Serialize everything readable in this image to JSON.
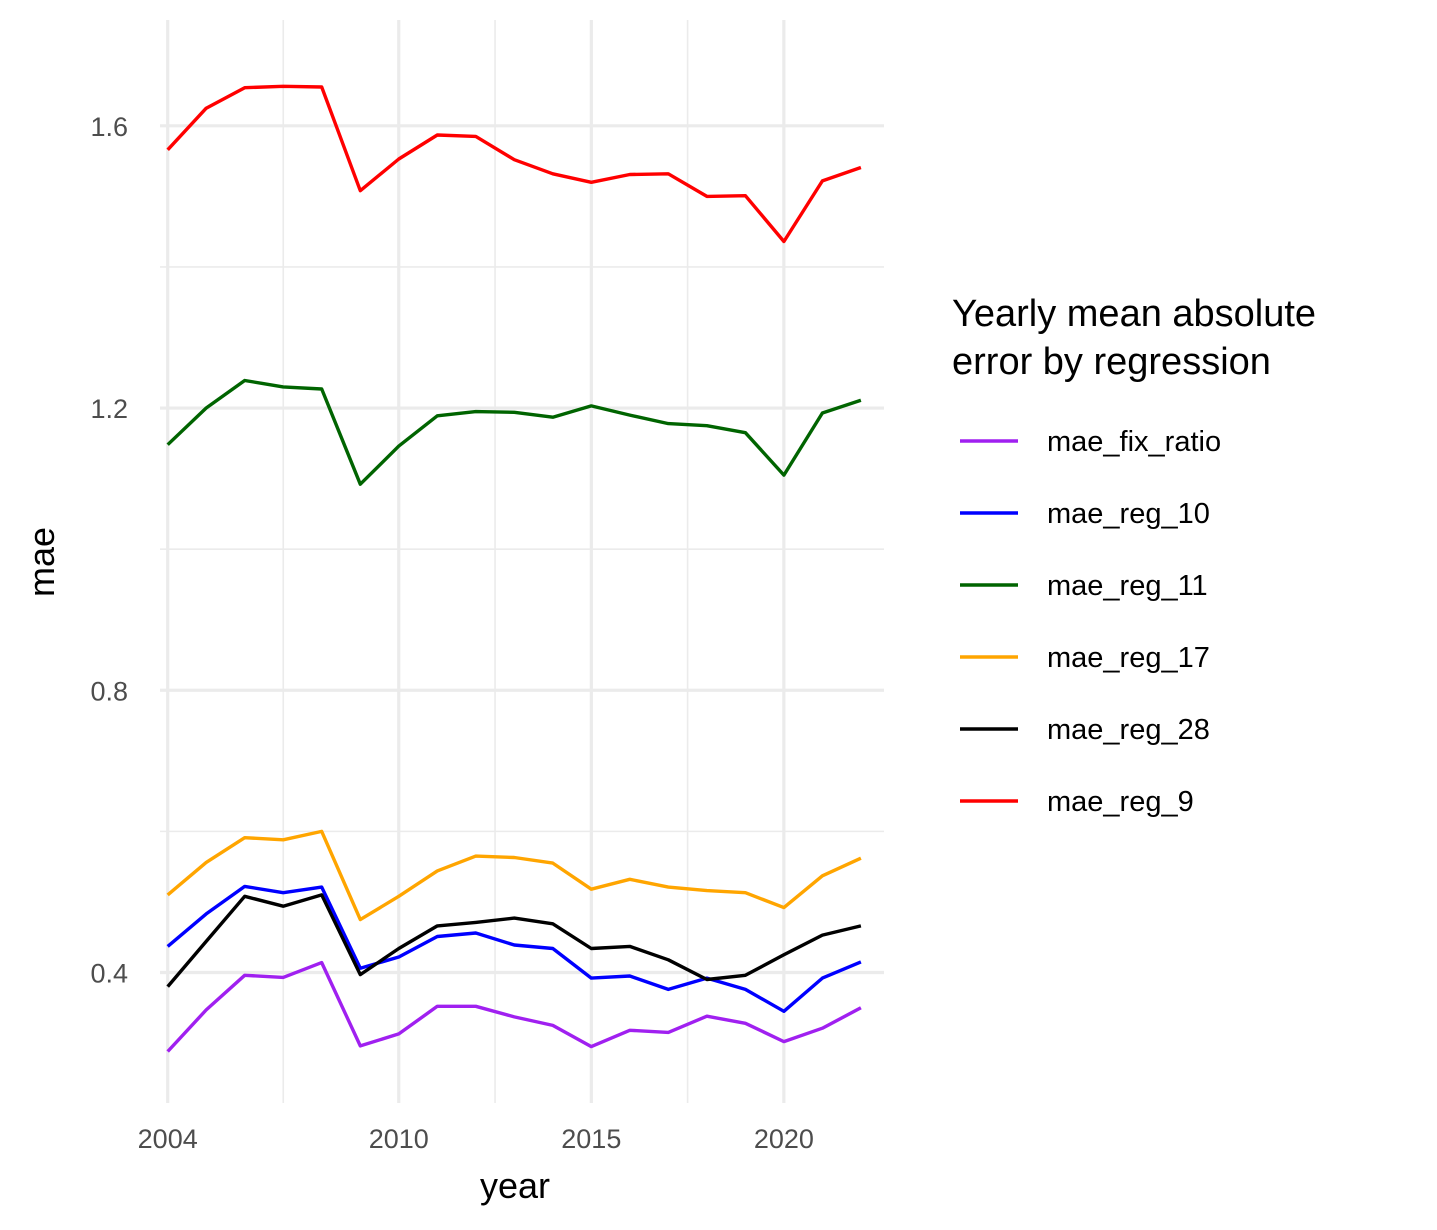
{
  "chart_data": {
    "type": "line",
    "xlabel": "year",
    "ylabel": "mae",
    "xlim": [
      2003.8,
      2022.6
    ],
    "ylim": [
      0.215,
      1.75
    ],
    "x_ticks": [
      2004,
      2010,
      2015,
      2020
    ],
    "x_tick_labels": [
      "2004",
      "2010",
      "2015",
      "2020"
    ],
    "x_minor_ticks": [
      2007,
      2012.5,
      2017.5
    ],
    "y_ticks": [
      0.4,
      0.8,
      1.2,
      1.6
    ],
    "y_tick_labels": [
      "0.4",
      "0.8",
      "1.2",
      "1.6"
    ],
    "y_minor_ticks": [
      0.6,
      1.0,
      1.4
    ],
    "grid": true,
    "legend": {
      "position": "right",
      "title_lines": [
        "Yearly mean absolute",
        "error by regression"
      ]
    },
    "x": [
      2004,
      2005,
      2006,
      2007,
      2008,
      2009,
      2010,
      2011,
      2012,
      2013,
      2014,
      2015,
      2016,
      2017,
      2018,
      2019,
      2020,
      2021,
      2022
    ],
    "series": [
      {
        "name": "mae_fix_ratio",
        "color": "#A020F0",
        "values": [
          0.288,
          0.347,
          0.396,
          0.393,
          0.414,
          0.296,
          0.313,
          0.352,
          0.352,
          0.337,
          0.325,
          0.295,
          0.318,
          0.315,
          0.338,
          0.328,
          0.302,
          0.321,
          0.35
        ]
      },
      {
        "name": "mae_reg_10",
        "color": "#0000FF",
        "values": [
          0.437,
          0.483,
          0.522,
          0.513,
          0.521,
          0.406,
          0.422,
          0.451,
          0.456,
          0.439,
          0.434,
          0.392,
          0.395,
          0.376,
          0.392,
          0.376,
          0.345,
          0.392,
          0.415
        ]
      },
      {
        "name": "mae_reg_11",
        "color": "#006400",
        "values": [
          1.148,
          1.2,
          1.239,
          1.23,
          1.227,
          1.092,
          1.146,
          1.189,
          1.195,
          1.194,
          1.187,
          1.203,
          1.19,
          1.178,
          1.175,
          1.165,
          1.105,
          1.193,
          1.211
        ]
      },
      {
        "name": "mae_reg_17",
        "color": "#FFA500",
        "values": [
          0.51,
          0.556,
          0.591,
          0.588,
          0.6,
          0.475,
          0.508,
          0.544,
          0.565,
          0.563,
          0.555,
          0.518,
          0.532,
          0.521,
          0.516,
          0.513,
          0.492,
          0.537,
          0.562
        ]
      },
      {
        "name": "mae_reg_28",
        "color": "#000000",
        "values": [
          0.38,
          0.444,
          0.508,
          0.494,
          0.51,
          0.397,
          0.434,
          0.466,
          0.471,
          0.477,
          0.469,
          0.434,
          0.437,
          0.418,
          0.39,
          0.396,
          0.425,
          0.453,
          0.466
        ]
      },
      {
        "name": "mae_reg_9",
        "color": "#FF0000",
        "values": [
          1.566,
          1.625,
          1.654,
          1.656,
          1.655,
          1.508,
          1.553,
          1.587,
          1.585,
          1.552,
          1.532,
          1.52,
          1.531,
          1.532,
          1.5,
          1.501,
          1.436,
          1.522,
          1.541
        ]
      }
    ]
  }
}
